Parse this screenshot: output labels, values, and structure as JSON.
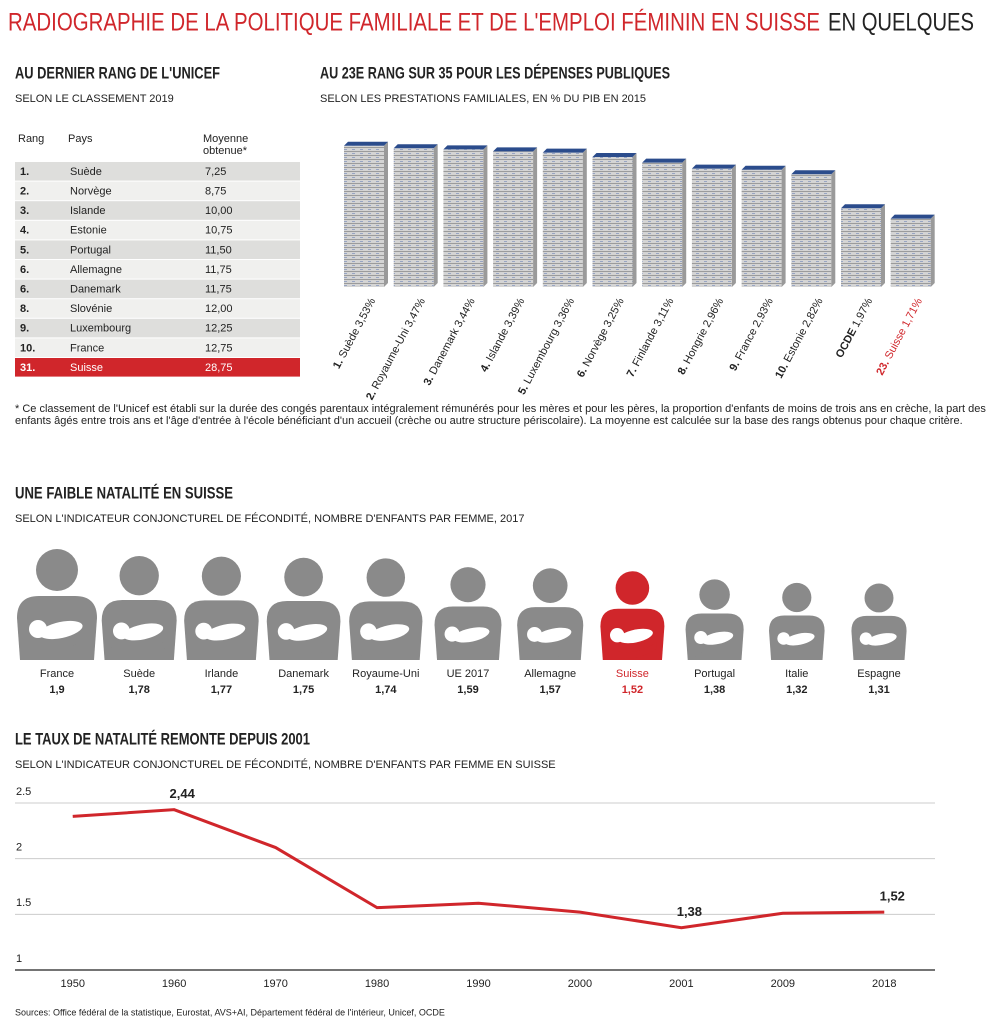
{
  "header": {
    "title": "RADIOGRAPHIE DE LA POLITIQUE FAMILIALE ET DE L'EMPLOI FÉMININ EN SUISSE",
    "title_suffix": "EN QUELQUES"
  },
  "table": {
    "title": "AU DERNIER RANG DE L'UNICEF",
    "subtitle": "SELON LE CLASSEMENT 2019",
    "columns": [
      "Rang",
      "Pays",
      "Moyenne obtenue*"
    ],
    "rows": [
      [
        "1.",
        "Suède",
        "7,25"
      ],
      [
        "2.",
        "Norvège",
        "8,75"
      ],
      [
        "3.",
        "Islande",
        "10,00"
      ],
      [
        "4.",
        "Estonie",
        "10,75"
      ],
      [
        "5.",
        "Portugal",
        "11,50"
      ],
      [
        "6.",
        "Allemagne",
        "11,75"
      ],
      [
        "6.",
        "Danemark",
        "11,75"
      ],
      [
        "8.",
        "Slovénie",
        "12,00"
      ],
      [
        "9.",
        "Luxembourg",
        "12,25"
      ],
      [
        "10.",
        "France",
        "12,75"
      ],
      [
        "31.",
        "Suisse",
        "28,75"
      ]
    ],
    "highlight": "Suisse",
    "highlight_color": "#d0262b"
  },
  "note": "* Ce classement de l'Unicef est établi sur la durée des congés parentaux intégralement rémunérés pour les mères et pour les pères, la proportion d'enfants de moins de trois ans en crèche, la part des enfants âgés entre trois ans et l'âge d'entrée à l'école bénéficiant d'un accueil (crèche ou autre structure périscolaire). La moyenne est calculée sur la base des rangs obtenus pour chaque critère.",
  "chart_data": [
    {
      "type": "stack",
      "title": "AU 23E RANG SUR 35 POUR LES DÉPENSES PUBLIQUES",
      "subtitle": "SELON LES PRESTATIONS FAMILIALES, EN % DU PIB EN 2015",
      "ranks": [
        "1.",
        "2.",
        "3.",
        "4.",
        "5.",
        "6.",
        "7.",
        "8.",
        "9.",
        "10.",
        null,
        "23."
      ],
      "categories": [
        "Suède",
        "Royaume-Uni",
        "Danemark",
        "Islande",
        "Luxembourg",
        "Norvège",
        "Finlande",
        "Hongrie",
        "France",
        "Estonie",
        "OCDE",
        "Suisse"
      ],
      "values": [
        3.53,
        3.47,
        3.44,
        3.39,
        3.36,
        3.25,
        3.11,
        2.96,
        2.93,
        2.82,
        1.97,
        1.71
      ],
      "value_labels": [
        "3,53%",
        "3,47%",
        "3,44%",
        "3,39%",
        "3,36%",
        "3,25%",
        "3,11%",
        "2,96%",
        "2,93%",
        "2,82%",
        "1,97%",
        "1,71%"
      ],
      "highlight": "Suisse",
      "highlight_color": "#d0262b"
    },
    {
      "type": "pictogram",
      "title": "UNE FAIBLE NATALITÉ EN SUISSE",
      "subtitle": "SELON L'INDICATEUR CONJONCTUREL DE FÉCONDITÉ, NOMBRE D'ENFANTS PAR FEMME, 2017",
      "categories": [
        "France",
        "Suède",
        "Irlande",
        "Danemark",
        "Royaume-Uni",
        "UE 2017",
        "Allemagne",
        "Suisse",
        "Portugal",
        "Italie",
        "Espagne"
      ],
      "values": [
        1.9,
        1.78,
        1.77,
        1.75,
        1.74,
        1.59,
        1.57,
        1.52,
        1.38,
        1.32,
        1.31
      ],
      "value_labels": [
        "1,9",
        "1,78",
        "1,77",
        "1,75",
        "1,74",
        "1,59",
        "1,57",
        "1,52",
        "1,38",
        "1,32",
        "1,31"
      ],
      "color": "#8a8a8a",
      "highlight": "Suisse",
      "highlight_color": "#d0262b"
    },
    {
      "type": "line",
      "title": "LE TAUX DE NATALITÉ REMONTE DEPUIS 2001",
      "subtitle": "SELON L'INDICATEUR CONJONCTUREL DE FÉCONDITÉ, NOMBRE D'ENFANTS PAR FEMME EN SUISSE",
      "categories": [
        "1950",
        "1960",
        "1970",
        "1980",
        "1990",
        "2000",
        "2001",
        "2009",
        "2018"
      ],
      "values": [
        2.38,
        2.44,
        2.1,
        1.56,
        1.6,
        1.52,
        1.38,
        1.51,
        1.52
      ],
      "value_labels": [
        null,
        "2,44",
        null,
        null,
        null,
        null,
        "1,38",
        null,
        "1,52"
      ],
      "color": "#d0262b",
      "ylim": [
        1,
        2.5
      ],
      "yticks": [
        1,
        1.5,
        2,
        2.5
      ],
      "grid": true
    }
  ],
  "sources": "Sources: Office fédéral de la statistique, Eurostat, AVS+AI, Département fédéral de l'intérieur, Unicef, OCDE"
}
